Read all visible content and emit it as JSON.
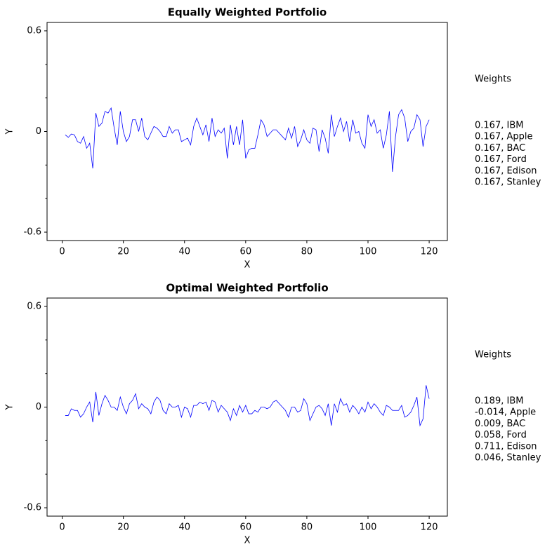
{
  "chart_data": [
    {
      "type": "line",
      "title": "Equally Weighted Portfolio",
      "x_label": "X",
      "y_label": "Y",
      "color": "#0000ff",
      "x": [
        1,
        2,
        3,
        4,
        5,
        6,
        7,
        8,
        9,
        10,
        11,
        12,
        13,
        14,
        15,
        16,
        17,
        18,
        19,
        20,
        21,
        22,
        23,
        24,
        25,
        26,
        27,
        28,
        29,
        30,
        31,
        32,
        33,
        34,
        35,
        36,
        37,
        38,
        39,
        40,
        41,
        42,
        43,
        44,
        45,
        46,
        47,
        48,
        49,
        50,
        51,
        52,
        53,
        54,
        55,
        56,
        57,
        58,
        59,
        60,
        61,
        62,
        63,
        64,
        65,
        66,
        67,
        68,
        69,
        70,
        71,
        72,
        73,
        74,
        75,
        76,
        77,
        78,
        79,
        80,
        81,
        82,
        83,
        84,
        85,
        86,
        87,
        88,
        89,
        90,
        91,
        92,
        93,
        94,
        95,
        96,
        97,
        98,
        99,
        100,
        101,
        102,
        103,
        104,
        105,
        106,
        107,
        108,
        109,
        110,
        111,
        112,
        113,
        114,
        115,
        116,
        117,
        118,
        119,
        120
      ],
      "values": [
        -0.02,
        -0.035,
        -0.015,
        -0.02,
        -0.06,
        -0.07,
        -0.03,
        -0.1,
        -0.07,
        -0.22,
        0.11,
        0.03,
        0.05,
        0.12,
        0.11,
        0.14,
        0.02,
        -0.08,
        0.12,
        0.0,
        -0.06,
        -0.03,
        0.07,
        0.07,
        0.0,
        0.08,
        -0.03,
        -0.05,
        -0.01,
        0.03,
        0.02,
        0.0,
        -0.03,
        -0.03,
        0.03,
        -0.01,
        0.01,
        0.01,
        -0.06,
        -0.05,
        -0.04,
        -0.08,
        0.03,
        0.08,
        0.03,
        -0.02,
        0.04,
        -0.06,
        0.08,
        -0.03,
        0.01,
        -0.01,
        0.02,
        -0.16,
        0.04,
        -0.08,
        0.03,
        -0.08,
        0.07,
        -0.16,
        -0.11,
        -0.1,
        -0.1,
        -0.02,
        0.07,
        0.04,
        -0.03,
        -0.01,
        0.01,
        0.01,
        -0.01,
        -0.03,
        -0.05,
        0.02,
        -0.04,
        0.03,
        -0.09,
        -0.05,
        0.01,
        -0.05,
        -0.07,
        0.02,
        0.01,
        -0.12,
        0.01,
        -0.04,
        -0.13,
        0.1,
        -0.03,
        0.03,
        0.08,
        0.0,
        0.06,
        -0.06,
        0.07,
        -0.01,
        0.0,
        -0.07,
        -0.1,
        0.1,
        0.03,
        0.07,
        -0.01,
        0.01,
        -0.1,
        -0.02,
        0.12,
        -0.24,
        -0.03,
        0.1,
        0.13,
        0.08,
        -0.06,
        0.0,
        0.02,
        0.1,
        0.07,
        -0.09,
        0.03,
        0.07
      ],
      "xlim": [
        -4.95,
        125.95
      ],
      "xticks": [
        0,
        20,
        40,
        60,
        80,
        100,
        120
      ],
      "ylim": [
        -0.65,
        0.65
      ],
      "yticks": [
        -0.6,
        0,
        0.6
      ],
      "yminorticks": [
        -0.4,
        -0.2,
        0.2,
        0.4
      ],
      "weights_title": "Weights",
      "weights": [
        "0.167, IBM",
        "0.167, Apple",
        "0.167, BAC",
        "0.167, Ford",
        "0.167, Edison",
        "0.167, Stanley"
      ]
    },
    {
      "type": "line",
      "title": "Optimal Weighted Portfolio",
      "x_label": "X",
      "y_label": "Y",
      "color": "#0000ff",
      "x": [
        1,
        2,
        3,
        4,
        5,
        6,
        7,
        8,
        9,
        10,
        11,
        12,
        13,
        14,
        15,
        16,
        17,
        18,
        19,
        20,
        21,
        22,
        23,
        24,
        25,
        26,
        27,
        28,
        29,
        30,
        31,
        32,
        33,
        34,
        35,
        36,
        37,
        38,
        39,
        40,
        41,
        42,
        43,
        44,
        45,
        46,
        47,
        48,
        49,
        50,
        51,
        52,
        53,
        54,
        55,
        56,
        57,
        58,
        59,
        60,
        61,
        62,
        63,
        64,
        65,
        66,
        67,
        68,
        69,
        70,
        71,
        72,
        73,
        74,
        75,
        76,
        77,
        78,
        79,
        80,
        81,
        82,
        83,
        84,
        85,
        86,
        87,
        88,
        89,
        90,
        91,
        92,
        93,
        94,
        95,
        96,
        97,
        98,
        99,
        100,
        101,
        102,
        103,
        104,
        105,
        106,
        107,
        108,
        109,
        110,
        111,
        112,
        113,
        114,
        115,
        116,
        117,
        118,
        119,
        120
      ],
      "values": [
        -0.05,
        -0.05,
        -0.01,
        -0.02,
        -0.02,
        -0.06,
        -0.04,
        0.0,
        0.03,
        -0.09,
        0.09,
        -0.05,
        0.02,
        0.07,
        0.04,
        0.0,
        0.0,
        -0.02,
        0.06,
        0.0,
        -0.04,
        0.02,
        0.04,
        0.08,
        -0.01,
        0.02,
        0.0,
        -0.01,
        -0.04,
        0.03,
        0.06,
        0.04,
        -0.02,
        -0.04,
        0.02,
        0.0,
        0.0,
        0.01,
        -0.06,
        0.0,
        -0.01,
        -0.06,
        0.01,
        0.01,
        0.03,
        0.02,
        0.03,
        -0.02,
        0.04,
        0.03,
        -0.03,
        0.01,
        -0.01,
        -0.03,
        -0.08,
        -0.01,
        -0.05,
        0.01,
        -0.03,
        0.01,
        -0.04,
        -0.04,
        -0.02,
        -0.03,
        0.0,
        0.0,
        -0.01,
        0.0,
        0.03,
        0.04,
        0.02,
        0.0,
        -0.02,
        -0.06,
        0.0,
        0.0,
        -0.03,
        -0.02,
        0.05,
        0.02,
        -0.08,
        -0.04,
        0.0,
        0.01,
        -0.01,
        -0.05,
        0.02,
        -0.11,
        0.02,
        -0.03,
        0.05,
        0.01,
        0.02,
        -0.03,
        0.01,
        -0.01,
        -0.04,
        0.0,
        -0.03,
        0.03,
        -0.01,
        0.02,
        0.0,
        -0.03,
        -0.05,
        0.01,
        0.0,
        -0.02,
        -0.02,
        -0.02,
        0.01,
        -0.06,
        -0.05,
        -0.03,
        0.01,
        0.06,
        -0.11,
        -0.07,
        0.13,
        0.05
      ],
      "xlim": [
        -4.95,
        125.95
      ],
      "xticks": [
        0,
        20,
        40,
        60,
        80,
        100,
        120
      ],
      "ylim": [
        -0.65,
        0.65
      ],
      "yticks": [
        -0.6,
        0,
        0.6
      ],
      "yminorticks": [
        -0.4,
        -0.2,
        0.2,
        0.4
      ],
      "weights_title": "Weights",
      "weights": [
        "0.189, IBM",
        "-0.014, Apple",
        "0.009, BAC",
        "0.058, Ford",
        "0.711, Edison",
        "0.046, Stanley"
      ]
    }
  ]
}
